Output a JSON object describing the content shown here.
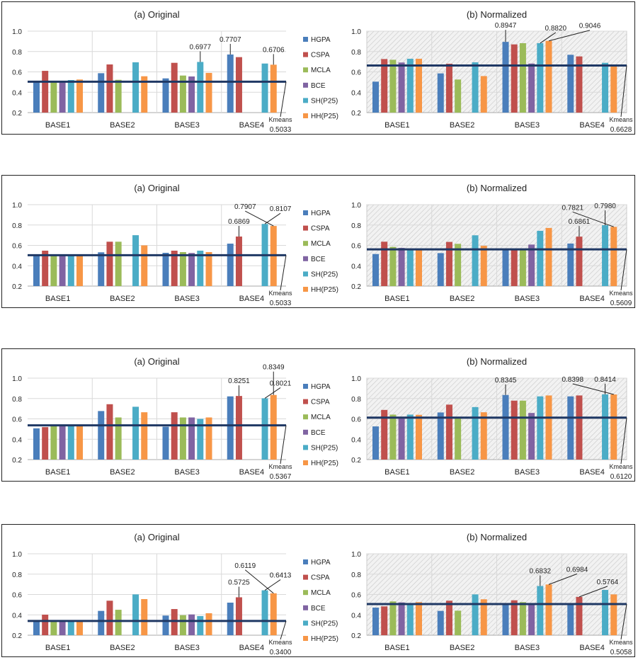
{
  "legend": [
    "HGPA",
    "CSPA",
    "MCLA",
    "BCE",
    "SH(P25)",
    "HH(P25)"
  ],
  "colors": {
    "HGPA": "#4a7ebb",
    "CSPA": "#c0504d",
    "MCLA": "#9bbb59",
    "BCE": "#8064a2",
    "SH(P25)": "#4bacc6",
    "HH(P25)": "#f79646",
    "kmeans_line": "#1f3864"
  },
  "chart_data": [
    {
      "type": "bar",
      "title": "(a) Original",
      "background": "plain",
      "categories": [
        "BASE1",
        "BASE2",
        "BASE3",
        "BASE4"
      ],
      "ylim": [
        0.2,
        1.0
      ],
      "yticks": [
        "0.2",
        "0.4",
        "0.6",
        "0.8",
        "1.0"
      ],
      "reference_line": {
        "label": "Kmeans",
        "value": 0.5033,
        "value_label": "0.5033"
      },
      "series": [
        {
          "name": "HGPA",
          "values": [
            0.5,
            0.587,
            0.536,
            0.7707
          ]
        },
        {
          "name": "CSPA",
          "values": [
            0.61,
            0.673,
            0.689,
            0.745
          ]
        },
        {
          "name": "MCLA",
          "values": [
            0.5,
            0.522,
            0.564,
            null
          ]
        },
        {
          "name": "BCE",
          "values": [
            0.5,
            null,
            0.555,
            null
          ]
        },
        {
          "name": "SH(P25)",
          "values": [
            0.52,
            0.694,
            0.6977,
            0.682
          ]
        },
        {
          "name": "HH(P25)",
          "values": [
            0.525,
            0.557,
            0.59,
            0.6706
          ]
        }
      ],
      "annotations": [
        {
          "category": 2,
          "series": 4,
          "label": "0.6977"
        },
        {
          "category": 3,
          "series": 0,
          "label": "0.7707"
        },
        {
          "category": 3,
          "series": 5,
          "label": "0.6706"
        }
      ]
    },
    {
      "type": "bar",
      "title": "(b) Normalized",
      "background": "hatched",
      "categories": [
        "BASE1",
        "BASE2",
        "BASE3",
        "BASE4"
      ],
      "ylim": [
        0.2,
        1.0
      ],
      "yticks": [
        "0.2",
        "0.4",
        "0.6",
        "0.8",
        "1.0"
      ],
      "reference_line": {
        "label": "Kmeans",
        "value": 0.6628,
        "value_label": "0.6628"
      },
      "series": [
        {
          "name": "HGPA",
          "values": [
            0.504,
            0.585,
            0.8947,
            0.768
          ]
        },
        {
          "name": "CSPA",
          "values": [
            0.726,
            0.68,
            0.87,
            0.752
          ]
        },
        {
          "name": "MCLA",
          "values": [
            0.719,
            0.525,
            0.882,
            null
          ]
        },
        {
          "name": "BCE",
          "values": [
            0.692,
            null,
            0.682,
            null
          ]
        },
        {
          "name": "SH(P25)",
          "values": [
            0.729,
            0.694,
            0.882,
            0.689
          ]
        },
        {
          "name": "HH(P25)",
          "values": [
            0.729,
            0.559,
            0.9046,
            0.66
          ]
        }
      ],
      "annotations": [
        {
          "category": 2,
          "series": 0,
          "label": "0.8947"
        },
        {
          "category": 2,
          "series": 4,
          "label": "0.8820"
        },
        {
          "category": 2,
          "series": 5,
          "label": "0.9046"
        }
      ]
    },
    {
      "type": "bar",
      "title": "(a) Original",
      "background": "plain",
      "categories": [
        "BASE1",
        "BASE2",
        "BASE3",
        "BASE4"
      ],
      "ylim": [
        0.2,
        1.0
      ],
      "yticks": [
        "0.2",
        "0.4",
        "0.6",
        "0.8",
        "1.0"
      ],
      "reference_line": {
        "label": "Kmeans",
        "value": 0.5033,
        "value_label": "0.5033"
      },
      "series": [
        {
          "name": "HGPA",
          "values": [
            0.5,
            0.532,
            0.527,
            0.617
          ]
        },
        {
          "name": "CSPA",
          "values": [
            0.548,
            0.636,
            0.548,
            0.6869
          ]
        },
        {
          "name": "MCLA",
          "values": [
            0.5,
            0.636,
            0.534,
            null
          ]
        },
        {
          "name": "BCE",
          "values": [
            0.5,
            null,
            0.525,
            null
          ]
        },
        {
          "name": "SH(P25)",
          "values": [
            0.5,
            0.7,
            0.548,
            0.8107
          ]
        },
        {
          "name": "HH(P25)",
          "values": [
            0.5,
            0.6,
            0.534,
            0.7907
          ]
        }
      ],
      "annotations": [
        {
          "category": 3,
          "series": 1,
          "label": "0.6869"
        },
        {
          "category": 3,
          "series": 4,
          "label": "0.8107"
        },
        {
          "category": 3,
          "series": 5,
          "label": "0.7907"
        }
      ]
    },
    {
      "type": "bar",
      "title": "(b) Normalized",
      "background": "hatched",
      "categories": [
        "BASE1",
        "BASE2",
        "BASE3",
        "BASE4"
      ],
      "ylim": [
        0.2,
        1.0
      ],
      "yticks": [
        "0.2",
        "0.4",
        "0.6",
        "0.8",
        "1.0"
      ],
      "reference_line": {
        "label": "Kmeans",
        "value": 0.5609,
        "value_label": "0.5609"
      },
      "series": [
        {
          "name": "HGPA",
          "values": [
            0.515,
            0.524,
            0.56,
            0.618
          ]
        },
        {
          "name": "CSPA",
          "values": [
            0.636,
            0.634,
            0.56,
            0.6861
          ]
        },
        {
          "name": "MCLA",
          "values": [
            0.585,
            0.615,
            0.56,
            null
          ]
        },
        {
          "name": "BCE",
          "values": [
            0.575,
            null,
            0.608,
            null
          ]
        },
        {
          "name": "SH(P25)",
          "values": [
            0.56,
            0.699,
            0.743,
            0.798
          ]
        },
        {
          "name": "HH(P25)",
          "values": [
            0.56,
            0.596,
            0.771,
            0.7821
          ]
        }
      ],
      "annotations": [
        {
          "category": 3,
          "series": 1,
          "label": "0.6861"
        },
        {
          "category": 3,
          "series": 4,
          "label": "0.7980"
        },
        {
          "category": 3,
          "series": 5,
          "label": "0.7821"
        }
      ]
    },
    {
      "type": "bar",
      "title": "(a) Original",
      "background": "plain",
      "categories": [
        "BASE1",
        "BASE2",
        "BASE3",
        "BASE4"
      ],
      "ylim": [
        0.2,
        1.0
      ],
      "yticks": [
        "0.2",
        "0.4",
        "0.6",
        "0.8",
        "1.0"
      ],
      "reference_line": {
        "label": "Kmeans",
        "value": 0.5367,
        "value_label": "0.5367"
      },
      "series": [
        {
          "name": "HGPA",
          "values": [
            0.507,
            0.677,
            0.523,
            0.821
          ]
        },
        {
          "name": "CSPA",
          "values": [
            0.519,
            0.744,
            0.665,
            0.8251
          ]
        },
        {
          "name": "MCLA",
          "values": [
            0.537,
            0.614,
            0.614,
            null
          ]
        },
        {
          "name": "BCE",
          "values": [
            0.537,
            null,
            0.614,
            null
          ]
        },
        {
          "name": "SH(P25)",
          "values": [
            0.537,
            0.719,
            0.6,
            0.8021
          ]
        },
        {
          "name": "HH(P25)",
          "values": [
            0.537,
            0.665,
            0.614,
            0.8349
          ]
        }
      ],
      "annotations": [
        {
          "category": 3,
          "series": 1,
          "label": "0.8251"
        },
        {
          "category": 3,
          "series": 4,
          "label": "0.8021"
        },
        {
          "category": 3,
          "series": 5,
          "label": "0.8349"
        }
      ]
    },
    {
      "type": "bar",
      "title": "(b) Normalized",
      "background": "hatched",
      "categories": [
        "BASE1",
        "BASE2",
        "BASE3",
        "BASE4"
      ],
      "ylim": [
        0.2,
        1.0
      ],
      "yticks": [
        "0.2",
        "0.4",
        "0.6",
        "0.8",
        "1.0"
      ],
      "reference_line": {
        "label": "Kmeans",
        "value": 0.612,
        "value_label": "0.6120"
      },
      "series": [
        {
          "name": "HGPA",
          "values": [
            0.526,
            0.663,
            0.8345,
            0.821
          ]
        },
        {
          "name": "CSPA",
          "values": [
            0.688,
            0.74,
            0.779,
            0.83
          ]
        },
        {
          "name": "MCLA",
          "values": [
            0.642,
            0.612,
            0.779,
            null
          ]
        },
        {
          "name": "BCE",
          "values": [
            0.612,
            null,
            0.658,
            null
          ]
        },
        {
          "name": "SH(P25)",
          "values": [
            0.642,
            0.716,
            0.821,
            0.8414
          ]
        },
        {
          "name": "HH(P25)",
          "values": [
            0.64,
            0.665,
            0.83,
            0.8398
          ]
        }
      ],
      "annotations": [
        {
          "category": 2,
          "series": 0,
          "label": "0.8345"
        },
        {
          "category": 3,
          "series": 4,
          "label": "0.8414"
        },
        {
          "category": 3,
          "series": 5,
          "label": "0.8398"
        }
      ]
    },
    {
      "type": "bar",
      "title": "(a) Original",
      "background": "plain",
      "categories": [
        "BASE1",
        "BASE2",
        "BASE3",
        "BASE4"
      ],
      "ylim": [
        0.2,
        1.0
      ],
      "yticks": [
        "0.2",
        "0.4",
        "0.6",
        "0.8",
        "1.0"
      ],
      "reference_line": {
        "label": "Kmeans",
        "value": 0.34,
        "value_label": "0.3400"
      },
      "series": [
        {
          "name": "HGPA",
          "values": [
            0.34,
            0.439,
            0.393,
            0.52
          ]
        },
        {
          "name": "CSPA",
          "values": [
            0.402,
            0.539,
            0.457,
            0.5725
          ]
        },
        {
          "name": "MCLA",
          "values": [
            0.34,
            0.45,
            0.397,
            null
          ]
        },
        {
          "name": "BCE",
          "values": [
            0.34,
            null,
            0.404,
            null
          ]
        },
        {
          "name": "SH(P25)",
          "values": [
            0.34,
            0.601,
            0.388,
            0.6413
          ]
        },
        {
          "name": "HH(P25)",
          "values": [
            0.34,
            0.555,
            0.416,
            0.6119
          ]
        }
      ],
      "annotations": [
        {
          "category": 3,
          "series": 1,
          "label": "0.5725"
        },
        {
          "category": 3,
          "series": 4,
          "label": "0.6413"
        },
        {
          "category": 3,
          "series": 5,
          "label": "0.6119"
        }
      ]
    },
    {
      "type": "bar",
      "title": "(b) Normalized",
      "background": "hatched",
      "categories": [
        "BASE1",
        "BASE2",
        "BASE3",
        "BASE4"
      ],
      "ylim": [
        0.2,
        1.0
      ],
      "yticks": [
        "0.2",
        "0.4",
        "0.6",
        "0.8",
        "1.0"
      ],
      "reference_line": {
        "label": "Kmeans",
        "value": 0.5058,
        "value_label": "0.5058"
      },
      "series": [
        {
          "name": "HGPA",
          "values": [
            0.471,
            0.439,
            0.506,
            0.515
          ]
        },
        {
          "name": "CSPA",
          "values": [
            0.483,
            0.539,
            0.543,
            0.5764
          ]
        },
        {
          "name": "MCLA",
          "values": [
            0.532,
            0.441,
            0.525,
            null
          ]
        },
        {
          "name": "BCE",
          "values": [
            0.522,
            null,
            0.506,
            null
          ]
        },
        {
          "name": "SH(P25)",
          "values": [
            0.515,
            0.601,
            0.6832,
            0.645
          ]
        },
        {
          "name": "HH(P25)",
          "values": [
            0.525,
            0.553,
            0.6984,
            0.601
          ]
        }
      ],
      "annotations": [
        {
          "category": 2,
          "series": 4,
          "label": "0.6832"
        },
        {
          "category": 2,
          "series": 5,
          "label": "0.6984"
        },
        {
          "category": 3,
          "series": 1,
          "label": "0.5764"
        }
      ]
    }
  ]
}
